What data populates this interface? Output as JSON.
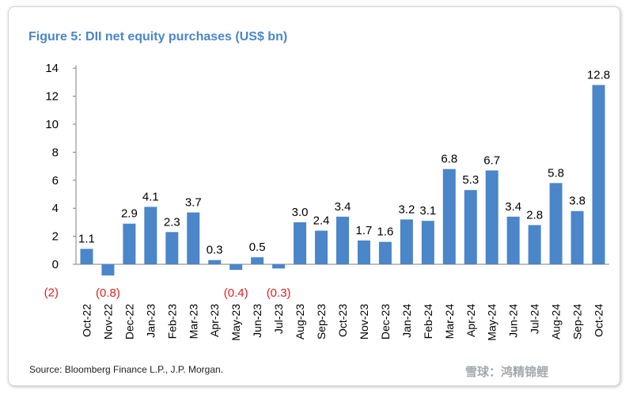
{
  "title": "Figure 5: DII net equity purchases (US$ bn)",
  "source": "Source: Bloomberg Finance L.P., J.P. Morgan.",
  "watermark": "雪球：鸿精锦鲤",
  "colors": {
    "bar": "#4a86c8",
    "title": "#4a86c8",
    "negative_label": "#e02020",
    "label": "#000000"
  },
  "chart_data": {
    "type": "bar",
    "title": "Figure 5: DII net equity purchases (US$ bn)",
    "xlabel": "",
    "ylabel": "",
    "ylim": [
      -2,
      14
    ],
    "yticks": [
      0,
      2,
      4,
      6,
      8,
      10,
      12,
      14
    ],
    "ytick_labels": [
      "0",
      "2",
      "4",
      "6",
      "8",
      "10",
      "12",
      "14"
    ],
    "extra_tick_label": {
      "value": -2,
      "text": "(2)"
    },
    "categories": [
      "Oct-22",
      "Nov-22",
      "Dec-22",
      "Jan-23",
      "Feb-23",
      "Mar-23",
      "Apr-23",
      "May-23",
      "Jun-23",
      "Jul-23",
      "Aug-23",
      "Sep-23",
      "Oct-23",
      "Nov-23",
      "Dec-23",
      "Jan-24",
      "Feb-24",
      "Mar-24",
      "Apr-24",
      "May-24",
      "Jun-24",
      "Jul-24",
      "Aug-24",
      "Sep-24",
      "Oct-24"
    ],
    "values": [
      1.1,
      -0.8,
      2.9,
      4.1,
      2.3,
      3.7,
      0.3,
      -0.4,
      0.5,
      -0.3,
      3.0,
      2.4,
      3.4,
      1.7,
      1.6,
      3.2,
      3.1,
      6.8,
      5.3,
      6.7,
      3.4,
      2.8,
      5.8,
      3.8,
      12.8
    ],
    "data_labels": [
      "1.1",
      "(0.8)",
      "2.9",
      "4.1",
      "2.3",
      "3.7",
      "0.3",
      "(0.4)",
      "0.5",
      "(0.3)",
      "3.0",
      "2.4",
      "3.4",
      "1.7",
      "1.6",
      "3.2",
      "3.1",
      "6.8",
      "5.3",
      "6.7",
      "3.4",
      "2.8",
      "5.8",
      "3.8",
      "12.8"
    ],
    "grid": false,
    "legend": "none"
  }
}
